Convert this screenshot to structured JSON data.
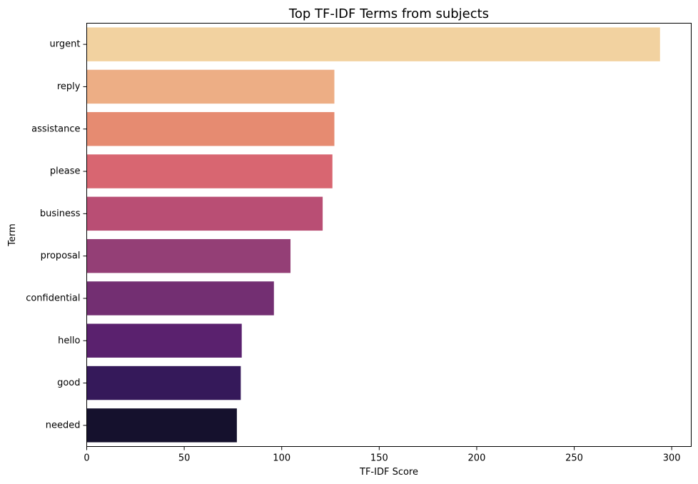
{
  "chart_data": {
    "type": "bar",
    "orientation": "horizontal",
    "title": "Top TF-IDF Terms from subjects",
    "xlabel": "TF-IDF Score",
    "ylabel": "Term",
    "xlim": [
      0,
      310
    ],
    "xticks": [
      0,
      50,
      100,
      150,
      200,
      250,
      300
    ],
    "grid": false,
    "categories": [
      "urgent",
      "reply",
      "assistance",
      "please",
      "business",
      "proposal",
      "confidential",
      "hello",
      "good",
      "needed"
    ],
    "values": [
      294,
      127,
      127,
      126,
      121,
      104.5,
      96,
      79.5,
      79,
      77
    ],
    "colors": [
      "#f2d2a0",
      "#edae85",
      "#e68b71",
      "#d86671",
      "#b94e74",
      "#943f76",
      "#732f72",
      "#5a216e",
      "#35195a",
      "#15112d"
    ]
  }
}
